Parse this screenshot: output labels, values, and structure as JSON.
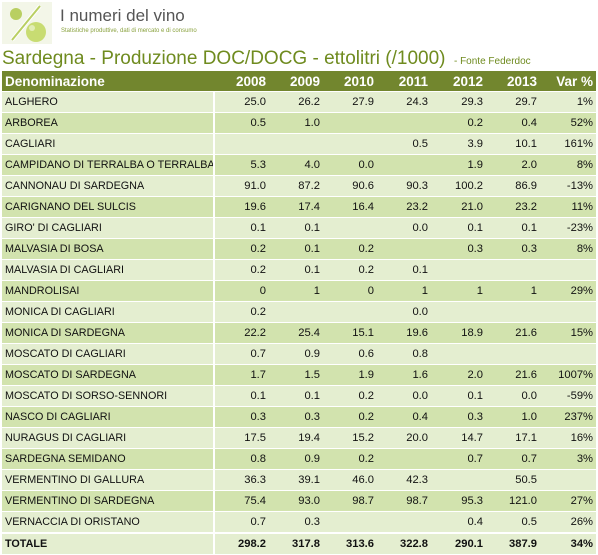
{
  "brand": {
    "title": "I numeri del vino",
    "tagline": "Statistiche produttive, dati di mercato e di consumo"
  },
  "heading": {
    "title": "Sardegna - Produzione DOC/DOCG - ettolitri (/1000)",
    "source": "- Fonte Federdoc"
  },
  "colors": {
    "header_bg": "#72862e",
    "row_light": "#e4eed0",
    "row_dark": "#d2e3ae",
    "title": "#6f8b1f"
  },
  "table": {
    "headers": [
      "Denominazione",
      "2008",
      "2009",
      "2010",
      "2011",
      "2012",
      "2013",
      "Var %"
    ],
    "rows": [
      [
        "ALGHERO",
        "25.0",
        "26.2",
        "27.9",
        "24.3",
        "29.3",
        "29.7",
        "1%"
      ],
      [
        "ARBOREA",
        "0.5",
        "1.0",
        "",
        "",
        "0.2",
        "0.4",
        "52%"
      ],
      [
        "CAGLIARI",
        "",
        "",
        "",
        "0.5",
        "3.9",
        "10.1",
        "161%"
      ],
      [
        "CAMPIDANO DI TERRALBA O TERRALBA",
        "5.3",
        "4.0",
        "0.0",
        "",
        "1.9",
        "2.0",
        "8%"
      ],
      [
        "CANNONAU DI SARDEGNA",
        "91.0",
        "87.2",
        "90.6",
        "90.3",
        "100.2",
        "86.9",
        "-13%"
      ],
      [
        "CARIGNANO DEL SULCIS",
        "19.6",
        "17.4",
        "16.4",
        "23.2",
        "21.0",
        "23.2",
        "11%"
      ],
      [
        "GIRO' DI CAGLIARI",
        "0.1",
        "0.1",
        "",
        "0.0",
        "0.1",
        "0.1",
        "-23%"
      ],
      [
        "MALVASIA DI BOSA",
        "0.2",
        "0.1",
        "0.2",
        "",
        "0.3",
        "0.3",
        "8%"
      ],
      [
        "MALVASIA DI CAGLIARI",
        "0.2",
        "0.1",
        "0.2",
        "0.1",
        "",
        "",
        ""
      ],
      [
        "MANDROLISAI",
        "0",
        "1",
        "0",
        "1",
        "1",
        "1",
        "29%"
      ],
      [
        "MONICA DI CAGLIARI",
        "0.2",
        "",
        "",
        "0.0",
        "",
        "",
        ""
      ],
      [
        "MONICA DI SARDEGNA",
        "22.2",
        "25.4",
        "15.1",
        "19.6",
        "18.9",
        "21.6",
        "15%"
      ],
      [
        "MOSCATO DI CAGLIARI",
        "0.7",
        "0.9",
        "0.6",
        "0.8",
        "",
        "",
        ""
      ],
      [
        "MOSCATO DI SARDEGNA",
        "1.7",
        "1.5",
        "1.9",
        "1.6",
        "2.0",
        "21.6",
        "1007%"
      ],
      [
        "MOSCATO DI SORSO-SENNORI",
        "0.1",
        "0.1",
        "0.2",
        "0.0",
        "0.1",
        "0.0",
        "-59%"
      ],
      [
        "NASCO DI CAGLIARI",
        "0.3",
        "0.3",
        "0.2",
        "0.4",
        "0.3",
        "1.0",
        "237%"
      ],
      [
        "NURAGUS DI CAGLIARI",
        "17.5",
        "19.4",
        "15.2",
        "20.0",
        "14.7",
        "17.1",
        "16%"
      ],
      [
        "SARDEGNA SEMIDANO",
        "0.8",
        "0.9",
        "0.2",
        "",
        "0.7",
        "0.7",
        "3%"
      ],
      [
        "VERMENTINO DI GALLURA",
        "36.3",
        "39.1",
        "46.0",
        "42.3",
        "",
        "50.5",
        ""
      ],
      [
        "VERMENTINO DI SARDEGNA",
        "75.4",
        "93.0",
        "98.7",
        "98.7",
        "95.3",
        "121.0",
        "27%"
      ],
      [
        "VERNACCIA DI ORISTANO",
        "0.7",
        "0.3",
        "",
        "",
        "0.4",
        "0.5",
        "26%"
      ]
    ],
    "total": [
      "TOTALE",
      "298.2",
      "317.8",
      "313.6",
      "322.8",
      "290.1",
      "387.9",
      "34%"
    ]
  }
}
